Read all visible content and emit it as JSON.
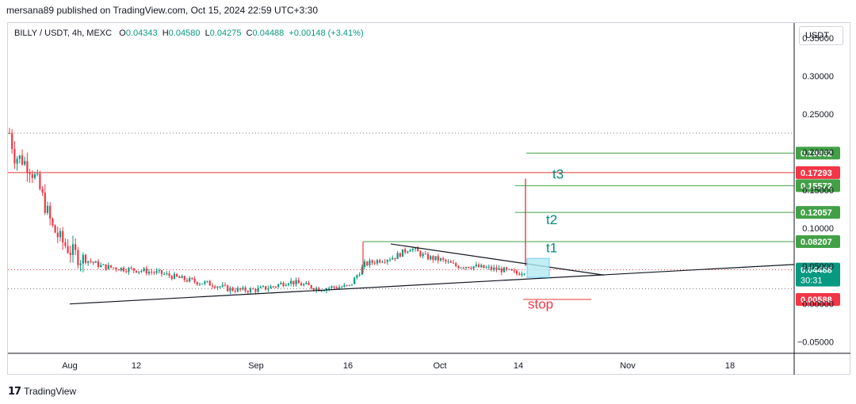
{
  "header": {
    "published": "mersana89 published on TradingView.com, Oct 15, 2024 22:59 UTC+3:30"
  },
  "legend": {
    "symbol": "BILLY / USDT, 4h, MEXC",
    "o_label": "O",
    "o": "0.04343",
    "h_label": "H",
    "h": "0.04580",
    "l_label": "L",
    "l": "0.04275",
    "c_label": "C",
    "c": "0.04488",
    "change": "+0.00148 (+3.41%)"
  },
  "currency": "USDT",
  "footer": {
    "logo_icon": "tradingview-logo-icon",
    "brand": "TradingView"
  },
  "colors": {
    "up": "#089981",
    "down": "#f23645",
    "green_line": "#43a047",
    "red_line": "#e53935"
  },
  "chart_data": {
    "type": "candlestick",
    "title": "",
    "x_ticks": [
      "Aug",
      "12",
      "Sep",
      "16",
      "Oct",
      "14",
      "Nov",
      "18"
    ],
    "y_ticks": [
      "0.35000",
      "0.30000",
      "0.25000",
      "0.20000",
      "0.15000",
      "0.10000",
      "0.05000",
      "0.00000",
      "−0.05000"
    ],
    "ylim": [
      -0.065,
      0.37
    ],
    "price_path": [
      [
        0,
        0.225
      ],
      [
        2,
        0.195
      ],
      [
        5,
        0.19
      ],
      [
        8,
        0.18
      ],
      [
        11,
        0.16
      ],
      [
        14,
        0.13
      ],
      [
        17,
        0.1
      ],
      [
        20,
        0.085
      ],
      [
        24,
        0.07
      ],
      [
        28,
        0.06
      ],
      [
        32,
        0.056
      ],
      [
        36,
        0.05
      ],
      [
        40,
        0.048
      ],
      [
        46,
        0.046
      ],
      [
        52,
        0.044
      ],
      [
        60,
        0.04
      ],
      [
        68,
        0.033
      ],
      [
        74,
        0.029
      ],
      [
        80,
        0.026
      ],
      [
        86,
        0.02
      ],
      [
        92,
        0.018
      ],
      [
        98,
        0.019
      ],
      [
        104,
        0.023
      ],
      [
        110,
        0.03
      ],
      [
        116,
        0.025
      ],
      [
        122,
        0.02
      ],
      [
        128,
        0.022
      ],
      [
        134,
        0.023
      ],
      [
        140,
        0.052
      ],
      [
        146,
        0.058
      ],
      [
        152,
        0.062
      ],
      [
        158,
        0.074
      ],
      [
        164,
        0.062
      ],
      [
        170,
        0.058
      ],
      [
        176,
        0.05
      ],
      [
        182,
        0.05
      ],
      [
        188,
        0.047
      ],
      [
        194,
        0.045
      ],
      [
        200,
        0.04
      ],
      [
        203,
        0.044
      ]
    ],
    "levels": [
      {
        "label": "t3",
        "value": 0.19862,
        "display": "0.19862",
        "color": "green"
      },
      {
        "label": "",
        "value": 0.17293,
        "display": "0.17293",
        "color": "red"
      },
      {
        "label": "",
        "value": 0.15572,
        "display": "0.15572",
        "color": "green"
      },
      {
        "label": "t2",
        "value": 0.12057,
        "display": "0.12057",
        "color": "green"
      },
      {
        "label": "t1",
        "value": 0.08207,
        "display": "0.08207",
        "color": "green"
      },
      {
        "label": "stop",
        "value": 0.00588,
        "display": "0.00588",
        "color": "red"
      }
    ],
    "annotations": {
      "t3": "t3",
      "t2": "t2",
      "t1": "t1",
      "stop": "stop"
    },
    "current_price": {
      "value": 0.04488,
      "display": "0.04488",
      "countdown": "30:31"
    },
    "dotted_levels": [
      0.225,
      0.045,
      0.02
    ]
  }
}
